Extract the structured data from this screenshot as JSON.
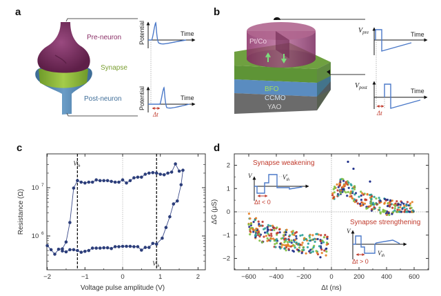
{
  "panels": {
    "a": {
      "label": "a",
      "pre_label": "Pre-neuron",
      "synapse_label": "Synapse",
      "post_label": "Post-neuron",
      "y_label": "Potential",
      "x_label": "Time",
      "delta_label": "Δt",
      "colors": {
        "pre": "#7a2a5e",
        "synapse": "#8fb83c",
        "post": "#4a7fa8",
        "trace": "#4a78c8",
        "delta": "#c0392b"
      }
    },
    "b": {
      "label": "b",
      "top_label": "Pt/Co",
      "layer1": "BFO",
      "layer2": "CCMO",
      "layer3": "YAO",
      "pre_axis": "V",
      "pre_sub": "pre",
      "post_axis": "V",
      "post_sub": "post",
      "x_label": "Time",
      "delta_label": "Δt",
      "colors": {
        "top": "#9b3a73",
        "bfo": "#6fa040",
        "ccmo": "#5a8cc0",
        "yao": "#6e6e6e",
        "trace": "#4a78c8"
      }
    },
    "c": {
      "label": "c"
    },
    "d": {
      "label": "d"
    }
  },
  "chart_data": [
    {
      "type": "line",
      "panel": "c",
      "title": "",
      "xlabel": "Voltage pulse amplitude (V)",
      "ylabel": "Resistance (Ω)",
      "xlim": [
        -2.1,
        2.2
      ],
      "ylim": [
        200000,
        40000000
      ],
      "yscale": "log",
      "xticks": [
        -2,
        -1,
        0,
        1,
        2
      ],
      "xtick_labels": [
        "−2",
        "−1",
        "0",
        "1",
        "2"
      ],
      "yticks": [
        1000000,
        10000000
      ],
      "ytick_labels": [
        "10",
        "10"
      ],
      "ytick_exp": [
        "6",
        "7"
      ],
      "marker_color": "#2c3e7a",
      "vlines": [
        {
          "x": -1.2,
          "label": "V",
          "sub": "th",
          "sup": "−",
          "style": "dashed"
        },
        {
          "x": 0.9,
          "label": "V",
          "sub": "th",
          "sup": "+",
          "style": "dashed"
        },
        {
          "x": 0,
          "style": "dotted"
        }
      ],
      "series": [
        {
          "name": "sweep",
          "points": [
            [
              -2.0,
              630000
            ],
            [
              -1.9,
              520000
            ],
            [
              -1.8,
              420000
            ],
            [
              -1.7,
              530000
            ],
            [
              -1.6,
              540000
            ],
            [
              -1.5,
              750000
            ],
            [
              -1.4,
              1900000
            ],
            [
              -1.3,
              9800000
            ],
            [
              -1.2,
              14000000
            ],
            [
              -1.1,
              13000000
            ],
            [
              -1.0,
              12500000
            ],
            [
              -0.9,
              13000000
            ],
            [
              -0.8,
              13000000
            ],
            [
              -0.7,
              14500000
            ],
            [
              -0.6,
              14000000
            ],
            [
              -0.5,
              14000000
            ],
            [
              -0.4,
              14000000
            ],
            [
              -0.3,
              13500000
            ],
            [
              -0.2,
              13000000
            ],
            [
              -0.1,
              13000000
            ],
            [
              0.0,
              14500000
            ],
            [
              0.1,
              12500000
            ],
            [
              0.2,
              14000000
            ],
            [
              0.3,
              16000000
            ],
            [
              0.4,
              16500000
            ],
            [
              0.5,
              16500000
            ],
            [
              0.6,
              19000000
            ],
            [
              0.7,
              20000000
            ],
            [
              0.8,
              20500000
            ],
            [
              0.9,
              20000000
            ],
            [
              1.0,
              19000000
            ],
            [
              1.1,
              18500000
            ],
            [
              1.2,
              20000000
            ],
            [
              1.3,
              21000000
            ],
            [
              1.4,
              31000000
            ],
            [
              1.5,
              22000000
            ],
            [
              1.6,
              23000000
            ],
            [
              1.55,
              11500000
            ],
            [
              1.45,
              5300000
            ],
            [
              1.35,
              4600000
            ],
            [
              1.25,
              2500000
            ],
            [
              1.15,
              1500000
            ],
            [
              1.05,
              900000
            ],
            [
              0.9,
              680000
            ],
            [
              0.8,
              700000
            ],
            [
              0.7,
              580000
            ],
            [
              0.6,
              580000
            ],
            [
              0.5,
              510000
            ],
            [
              0.4,
              600000
            ],
            [
              0.3,
              600000
            ],
            [
              0.2,
              610000
            ],
            [
              0.1,
              610000
            ],
            [
              0.0,
              610000
            ],
            [
              -0.1,
              600000
            ],
            [
              -0.2,
              600000
            ],
            [
              -0.3,
              550000
            ],
            [
              -0.4,
              570000
            ],
            [
              -0.5,
              570000
            ],
            [
              -0.6,
              560000
            ],
            [
              -0.7,
              560000
            ],
            [
              -0.8,
              560000
            ],
            [
              -0.9,
              500000
            ],
            [
              -1.0,
              480000
            ],
            [
              -1.1,
              460000
            ],
            [
              -1.2,
              500000
            ],
            [
              -1.3,
              520000
            ],
            [
              -1.4,
              520000
            ],
            [
              -1.5,
              470000
            ],
            [
              -1.6,
              490000
            ]
          ]
        }
      ]
    },
    {
      "type": "scatter",
      "panel": "d",
      "title": "",
      "xlabel": "Δt (ns)",
      "ylabel": "ΔG (μS)",
      "xlim": [
        -700,
        700
      ],
      "ylim": [
        -2.5,
        2.5
      ],
      "xticks": [
        -600,
        -400,
        -200,
        0,
        200,
        400,
        600
      ],
      "xtick_labels": [
        "−600",
        "−400",
        "−200",
        "0",
        "200",
        "400",
        "600"
      ],
      "yticks": [
        -2,
        -1,
        0,
        1,
        2
      ],
      "ytick_labels": [
        "−2",
        "−1",
        "0",
        "1",
        "2"
      ],
      "series_colors": [
        "#1f2f8a",
        "#c0392b",
        "#e67e22",
        "#7fbf3f",
        "#2aa198"
      ],
      "trend": {
        "negative_branch": "ΔG ≈ −0.5 at Δt=−600 ns decreasing to ≈ −1.5 near Δt=−100 ns",
        "positive_branch": "ΔG ≈ +1.3 peak near Δt≈80 ns decaying to ≈ 0 at Δt=600 ns"
      },
      "annotations": {
        "weakening": "Synapse weakening",
        "strengthening": "Synapse strengthening",
        "weak_cond": "Δt < 0",
        "strong_cond": "Δt > 0",
        "v_label": "V",
        "vth_plus": "V",
        "vth_sub": "th",
        "plus": "+",
        "minus": "−"
      }
    }
  ]
}
